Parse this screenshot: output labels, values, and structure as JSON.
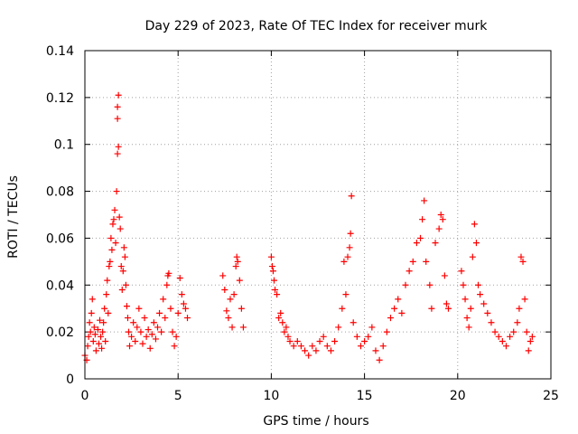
{
  "chart_data": {
    "type": "scatter",
    "title": "Day 229 of 2023, Rate Of TEC Index for receiver murk",
    "xlabel": "GPS time / hours",
    "ylabel": "ROTI / TECUs",
    "xlim": [
      0,
      25
    ],
    "ylim": [
      0,
      0.14
    ],
    "x_ticks": [
      "0",
      "5",
      "10",
      "15",
      "20",
      "25"
    ],
    "y_ticks": [
      "0",
      "0.02",
      "0.04",
      "0.06",
      "0.08",
      "0.1",
      "0.12",
      "0.14"
    ],
    "grid": true,
    "marker": "+",
    "color": "#ff0000",
    "series": [
      {
        "points": [
          [
            0.0,
            0.01
          ],
          [
            0.1,
            0.008
          ],
          [
            0.15,
            0.014
          ],
          [
            0.2,
            0.018
          ],
          [
            0.25,
            0.024
          ],
          [
            0.3,
            0.02
          ],
          [
            0.35,
            0.028
          ],
          [
            0.4,
            0.034
          ],
          [
            0.45,
            0.016
          ],
          [
            0.5,
            0.022
          ],
          [
            0.55,
            0.019
          ],
          [
            0.6,
            0.012
          ],
          [
            0.7,
            0.021
          ],
          [
            0.75,
            0.015
          ],
          [
            0.8,
            0.025
          ],
          [
            0.85,
            0.018
          ],
          [
            0.9,
            0.013
          ],
          [
            0.95,
            0.02
          ],
          [
            1.0,
            0.024
          ],
          [
            1.05,
            0.03
          ],
          [
            1.1,
            0.016
          ],
          [
            1.15,
            0.036
          ],
          [
            1.2,
            0.042
          ],
          [
            1.25,
            0.028
          ],
          [
            1.3,
            0.048
          ],
          [
            1.35,
            0.05
          ],
          [
            1.4,
            0.06
          ],
          [
            1.45,
            0.055
          ],
          [
            1.5,
            0.066
          ],
          [
            1.55,
            0.068
          ],
          [
            1.6,
            0.072
          ],
          [
            1.65,
            0.058
          ],
          [
            1.7,
            0.08
          ],
          [
            1.75,
            0.096
          ],
          [
            1.75,
            0.111
          ],
          [
            1.75,
            0.116
          ],
          [
            1.8,
            0.121
          ],
          [
            1.8,
            0.099
          ],
          [
            1.85,
            0.069
          ],
          [
            1.9,
            0.064
          ],
          [
            1.95,
            0.048
          ],
          [
            2.0,
            0.038
          ],
          [
            2.05,
            0.046
          ],
          [
            2.1,
            0.056
          ],
          [
            2.15,
            0.052
          ],
          [
            2.2,
            0.04
          ],
          [
            2.25,
            0.031
          ],
          [
            2.3,
            0.026
          ],
          [
            2.35,
            0.02
          ],
          [
            2.4,
            0.014
          ],
          [
            2.5,
            0.018
          ],
          [
            2.6,
            0.024
          ],
          [
            2.7,
            0.016
          ],
          [
            2.8,
            0.022
          ],
          [
            2.9,
            0.03
          ],
          [
            3.0,
            0.02
          ],
          [
            3.1,
            0.015
          ],
          [
            3.2,
            0.026
          ],
          [
            3.3,
            0.018
          ],
          [
            3.4,
            0.021
          ],
          [
            3.5,
            0.013
          ],
          [
            3.6,
            0.019
          ],
          [
            3.7,
            0.024
          ],
          [
            3.8,
            0.017
          ],
          [
            3.9,
            0.022
          ],
          [
            4.0,
            0.028
          ],
          [
            4.1,
            0.02
          ],
          [
            4.2,
            0.034
          ],
          [
            4.3,
            0.026
          ],
          [
            4.4,
            0.04
          ],
          [
            4.45,
            0.044
          ],
          [
            4.5,
            0.045
          ],
          [
            4.6,
            0.03
          ],
          [
            4.7,
            0.02
          ],
          [
            4.8,
            0.014
          ],
          [
            4.9,
            0.018
          ],
          [
            5.0,
            0.028
          ],
          [
            5.1,
            0.043
          ],
          [
            5.2,
            0.036
          ],
          [
            5.3,
            0.032
          ],
          [
            5.4,
            0.03
          ],
          [
            5.5,
            0.026
          ],
          [
            7.4,
            0.044
          ],
          [
            7.5,
            0.038
          ],
          [
            7.6,
            0.029
          ],
          [
            7.7,
            0.026
          ],
          [
            7.8,
            0.034
          ],
          [
            7.9,
            0.022
          ],
          [
            8.0,
            0.036
          ],
          [
            8.1,
            0.048
          ],
          [
            8.15,
            0.052
          ],
          [
            8.2,
            0.05
          ],
          [
            8.3,
            0.042
          ],
          [
            8.4,
            0.03
          ],
          [
            8.5,
            0.022
          ],
          [
            10.0,
            0.052
          ],
          [
            10.05,
            0.048
          ],
          [
            10.1,
            0.046
          ],
          [
            10.15,
            0.042
          ],
          [
            10.2,
            0.038
          ],
          [
            10.3,
            0.036
          ],
          [
            10.4,
            0.026
          ],
          [
            10.5,
            0.028
          ],
          [
            10.6,
            0.024
          ],
          [
            10.7,
            0.02
          ],
          [
            10.8,
            0.022
          ],
          [
            10.9,
            0.018
          ],
          [
            11.0,
            0.016
          ],
          [
            11.2,
            0.014
          ],
          [
            11.4,
            0.016
          ],
          [
            11.6,
            0.014
          ],
          [
            11.8,
            0.012
          ],
          [
            12.0,
            0.01
          ],
          [
            12.2,
            0.014
          ],
          [
            12.4,
            0.012
          ],
          [
            12.6,
            0.016
          ],
          [
            12.8,
            0.018
          ],
          [
            13.0,
            0.014
          ],
          [
            13.2,
            0.012
          ],
          [
            13.4,
            0.016
          ],
          [
            13.6,
            0.022
          ],
          [
            13.8,
            0.03
          ],
          [
            13.9,
            0.05
          ],
          [
            14.0,
            0.036
          ],
          [
            14.1,
            0.052
          ],
          [
            14.2,
            0.056
          ],
          [
            14.25,
            0.062
          ],
          [
            14.3,
            0.078
          ],
          [
            14.4,
            0.024
          ],
          [
            14.6,
            0.018
          ],
          [
            14.8,
            0.014
          ],
          [
            15.0,
            0.016
          ],
          [
            15.2,
            0.018
          ],
          [
            15.4,
            0.022
          ],
          [
            15.6,
            0.012
          ],
          [
            15.8,
            0.008
          ],
          [
            16.0,
            0.014
          ],
          [
            16.2,
            0.02
          ],
          [
            16.4,
            0.026
          ],
          [
            16.6,
            0.03
          ],
          [
            16.8,
            0.034
          ],
          [
            17.0,
            0.028
          ],
          [
            17.2,
            0.04
          ],
          [
            17.4,
            0.046
          ],
          [
            17.6,
            0.05
          ],
          [
            17.8,
            0.058
          ],
          [
            18.0,
            0.06
          ],
          [
            18.1,
            0.068
          ],
          [
            18.2,
            0.076
          ],
          [
            18.3,
            0.05
          ],
          [
            18.5,
            0.04
          ],
          [
            18.6,
            0.03
          ],
          [
            18.8,
            0.058
          ],
          [
            19.0,
            0.064
          ],
          [
            19.1,
            0.07
          ],
          [
            19.2,
            0.068
          ],
          [
            19.3,
            0.044
          ],
          [
            19.4,
            0.032
          ],
          [
            19.5,
            0.03
          ],
          [
            20.2,
            0.046
          ],
          [
            20.3,
            0.04
          ],
          [
            20.4,
            0.034
          ],
          [
            20.5,
            0.026
          ],
          [
            20.6,
            0.022
          ],
          [
            20.7,
            0.03
          ],
          [
            20.8,
            0.052
          ],
          [
            20.9,
            0.066
          ],
          [
            21.0,
            0.058
          ],
          [
            21.1,
            0.04
          ],
          [
            21.2,
            0.036
          ],
          [
            21.4,
            0.032
          ],
          [
            21.6,
            0.028
          ],
          [
            21.8,
            0.024
          ],
          [
            22.0,
            0.02
          ],
          [
            22.2,
            0.018
          ],
          [
            22.4,
            0.016
          ],
          [
            22.6,
            0.014
          ],
          [
            22.8,
            0.018
          ],
          [
            23.0,
            0.02
          ],
          [
            23.2,
            0.024
          ],
          [
            23.3,
            0.03
          ],
          [
            23.4,
            0.052
          ],
          [
            23.5,
            0.05
          ],
          [
            23.6,
            0.034
          ],
          [
            23.7,
            0.02
          ],
          [
            23.8,
            0.012
          ],
          [
            23.9,
            0.016
          ],
          [
            24.0,
            0.018
          ]
        ]
      }
    ]
  }
}
